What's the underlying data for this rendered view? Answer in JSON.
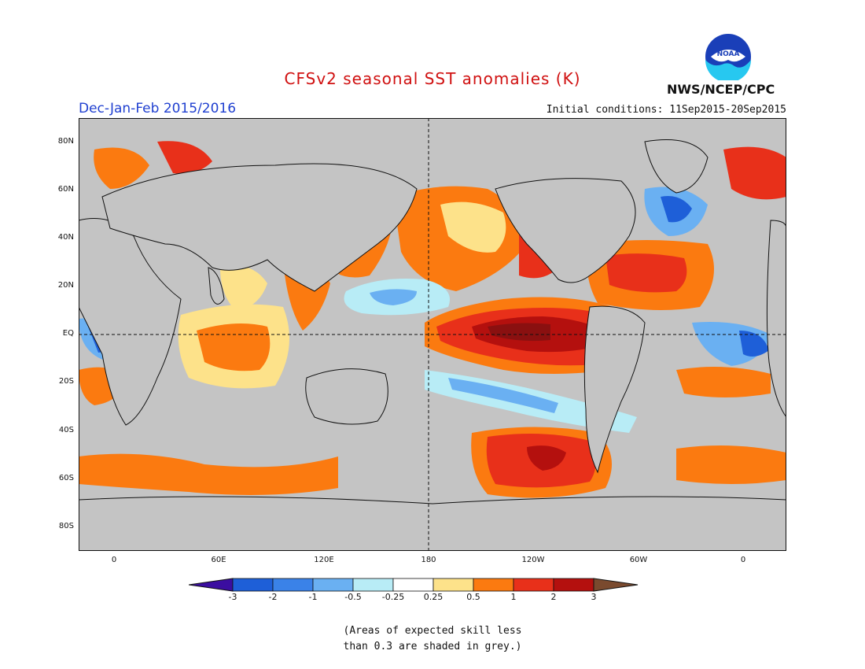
{
  "title": "CFSv2 seasonal SST anomalies (K)",
  "subtitle": "Dec-Jan-Feb 2015/2016",
  "initial_conditions": "Initial conditions: 11Sep2015-20Sep2015",
  "agency": "NWS/NCEP/CPC",
  "logo_text": "NOAA",
  "map": {
    "lat_labels": [
      "80N",
      "60N",
      "40N",
      "20N",
      "EQ",
      "20S",
      "40S",
      "60S",
      "80S"
    ],
    "lon_labels": [
      "0",
      "60E",
      "120E",
      "180",
      "120W",
      "60W",
      "0"
    ]
  },
  "colorbar": {
    "labels": [
      "-3",
      "-2",
      "-1",
      "-0.5",
      "-0.25",
      "0.25",
      "0.5",
      "1",
      "2",
      "3"
    ],
    "colors": [
      "#3b0ea0",
      "#1e5fd8",
      "#3a82e8",
      "#6ab0f2",
      "#b8ecf6",
      "#ffffff",
      "#fde28a",
      "#fb7a10",
      "#e8301a",
      "#b4100e",
      "#7a4a2e"
    ]
  },
  "footnote": {
    "line1": "(Areas of expected skill less",
    "line2": "than 0.3 are shaded in grey.)"
  },
  "colors": {
    "grey_no_skill": "#c4c4c4",
    "title_red": "#d01010",
    "subtitle_blue": "#1f3fd0"
  }
}
